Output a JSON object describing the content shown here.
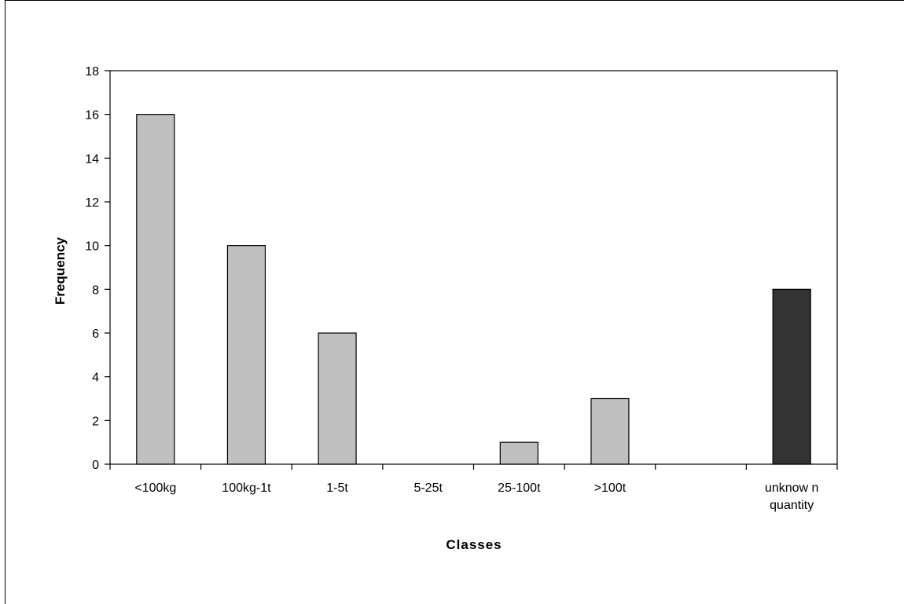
{
  "chart_data": {
    "type": "bar",
    "title": "",
    "xlabel": "Classes",
    "ylabel": "Frequency",
    "ylim": [
      0,
      18
    ],
    "yticks": [
      0,
      2,
      4,
      6,
      8,
      10,
      12,
      14,
      16,
      18
    ],
    "grid": false,
    "legend": "none",
    "categories": [
      [
        "<100kg"
      ],
      [
        "100kg-1t"
      ],
      [
        "1-5t"
      ],
      [
        "5-25t"
      ],
      [
        "25-100t"
      ],
      [
        ">100t"
      ],
      [
        ""
      ],
      [
        "unknow n",
        "quantity"
      ]
    ],
    "values": [
      16,
      10,
      6,
      0,
      1,
      3,
      0,
      8
    ],
    "bar_colors": [
      "#c0c0c0",
      "#c0c0c0",
      "#c0c0c0",
      "#c0c0c0",
      "#c0c0c0",
      "#c0c0c0",
      "#c0c0c0",
      "#333333"
    ]
  }
}
